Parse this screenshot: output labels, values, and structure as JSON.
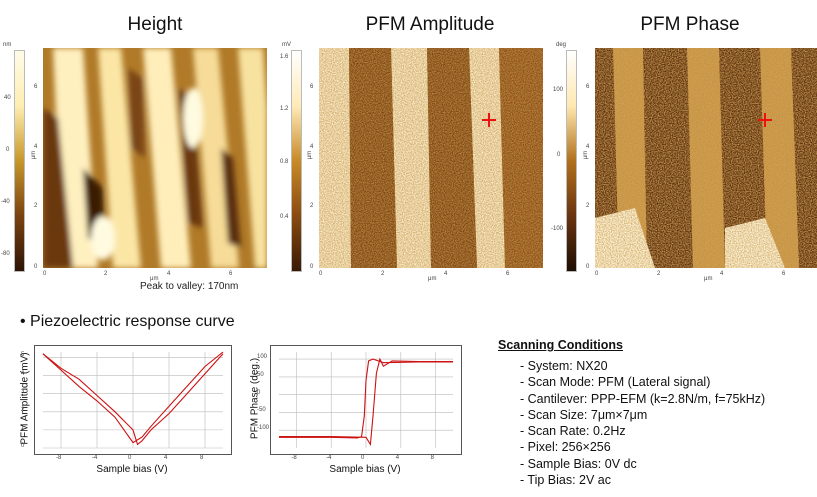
{
  "maps": [
    {
      "title": "Height",
      "unit": "nm",
      "scale_ticks": [
        "40",
        "0",
        "-40",
        "-80"
      ],
      "axis_unit": "μm",
      "x_ticks": [
        "0",
        "2",
        "4",
        "6"
      ],
      "y_ticks": [
        "0",
        "2",
        "4",
        "6"
      ],
      "colors": [
        "#2e1406",
        "#c8962a",
        "#fff4c8"
      ]
    },
    {
      "title": "PFM Amplitude",
      "unit": "mV",
      "scale_ticks": [
        "1.6",
        "1.2",
        "0.8",
        "0.4"
      ],
      "axis_unit": "μm",
      "x_ticks": [
        "0",
        "2",
        "4",
        "6"
      ],
      "y_ticks": [
        "0",
        "2",
        "4",
        "6"
      ],
      "colors": [
        "#3a1a06",
        "#b06e16",
        "#fff6d8"
      ]
    },
    {
      "title": "PFM Phase",
      "unit": "deg",
      "scale_ticks": [
        "100",
        "0",
        "-100"
      ],
      "axis_unit": "μm",
      "x_ticks": [
        "0",
        "2",
        "4",
        "6"
      ],
      "y_ticks": [
        "0",
        "2",
        "4",
        "6"
      ],
      "colors": [
        "#1e0e04",
        "#a8641a",
        "#fff6d8"
      ]
    }
  ],
  "peak_to_valley": "Peak to valley: 170nm",
  "section_title": "• Piezoelectric response curve",
  "chart_data": [
    {
      "type": "line",
      "xlabel": "Sample bias (V)",
      "ylabel": "PFM Amplitude (mV)",
      "x_ticks": [
        "-8",
        "-4",
        "0",
        "4",
        "8"
      ],
      "y_ticks": [
        "0",
        "1",
        "2",
        "3",
        "4",
        "5"
      ],
      "xlim": [
        -10,
        10
      ],
      "ylim": [
        0,
        5.3
      ],
      "series": [
        {
          "x": [
            -10,
            -8,
            -6,
            -4,
            -2,
            -1,
            0,
            1,
            2,
            4,
            6,
            8,
            10
          ],
          "y": [
            5.2,
            4.3,
            3.4,
            2.6,
            1.7,
            1.0,
            0.3,
            0.6,
            1.2,
            2.3,
            3.4,
            4.5,
            5.3
          ]
        },
        {
          "x": [
            -10,
            -8,
            -6,
            -4,
            -2,
            0,
            0.5,
            1,
            2,
            4,
            6,
            8,
            10
          ],
          "y": [
            5.2,
            4.4,
            3.8,
            2.9,
            2.0,
            1.0,
            0.2,
            0.4,
            1.0,
            1.9,
            3.0,
            4.1,
            5.2
          ]
        }
      ],
      "colors": [
        "#cc1111"
      ]
    },
    {
      "type": "line",
      "xlabel": "Sample bias (V)",
      "ylabel": "PFM Phase (deg.)",
      "x_ticks": [
        "-8",
        "-4",
        "0",
        "4",
        "8"
      ],
      "y_ticks": [
        "100",
        "50",
        "0",
        "-50",
        "-100"
      ],
      "xlim": [
        -10,
        10
      ],
      "ylim": [
        -150,
        120
      ],
      "series": [
        {
          "x": [
            -10,
            -4,
            -1,
            -0.5,
            -0.2,
            0,
            0.3,
            0.8,
            2,
            6,
            10
          ],
          "y": [
            -120,
            -120,
            -122,
            -118,
            -60,
            40,
            95,
            100,
            90,
            92,
            92
          ]
        },
        {
          "x": [
            -10,
            -4,
            0,
            0.5,
            0.8,
            1.2,
            1.6,
            2,
            3,
            6,
            10
          ],
          "y": [
            -118,
            -118,
            -120,
            -140,
            -60,
            60,
            100,
            80,
            95,
            93,
            93
          ]
        }
      ],
      "colors": [
        "#cc1111"
      ]
    }
  ],
  "conditions": {
    "title": "Scanning Conditions",
    "items": [
      "- System: NX20",
      "- Scan Mode: PFM (Lateral signal)",
      "- Cantilever: PPP-EFM (k=2.8N/m, f=75kHz)",
      "- Scan Size: 7μm×7μm",
      "- Scan Rate: 0.2Hz",
      "- Pixel: 256×256",
      "- Sample Bias: 0V dc",
      "- Tip Bias: 2V ac"
    ]
  }
}
